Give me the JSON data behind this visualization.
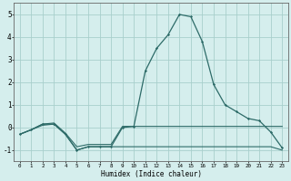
{
  "xlabel": "Humidex (Indice chaleur)",
  "x": [
    0,
    1,
    2,
    3,
    4,
    5,
    6,
    7,
    8,
    9,
    10,
    11,
    12,
    13,
    14,
    15,
    16,
    17,
    18,
    19,
    20,
    21,
    22,
    23
  ],
  "line_main": [
    -0.3,
    -0.1,
    0.15,
    0.15,
    -0.3,
    -1.0,
    -0.85,
    -0.85,
    -0.85,
    0.0,
    0.05,
    2.5,
    3.5,
    4.1,
    5.0,
    4.9,
    3.8,
    1.9,
    1.0,
    0.7,
    0.4,
    0.3,
    -0.2,
    -0.9
  ],
  "line_upper": [
    -0.3,
    -0.1,
    0.15,
    0.2,
    -0.25,
    -0.85,
    -0.75,
    -0.75,
    -0.75,
    0.05,
    0.05,
    0.05,
    0.05,
    0.05,
    0.05,
    0.05,
    0.05,
    0.05,
    0.05,
    0.05,
    0.05,
    0.05,
    0.05,
    0.05
  ],
  "line_lower": [
    -0.3,
    -0.1,
    0.1,
    0.15,
    -0.3,
    -1.0,
    -0.85,
    -0.85,
    -0.85,
    -0.85,
    -0.85,
    -0.85,
    -0.85,
    -0.85,
    -0.85,
    -0.85,
    -0.85,
    -0.85,
    -0.85,
    -0.85,
    -0.85,
    -0.85,
    -0.85,
    -1.0
  ],
  "bg_color": "#d5eeed",
  "grid_color": "#a8cfcc",
  "line_color": "#2d6b68",
  "ylim": [
    -1.5,
    5.5
  ],
  "yticks": [
    -1,
    0,
    1,
    2,
    3,
    4,
    5
  ],
  "xlim": [
    -0.5,
    23.5
  ]
}
